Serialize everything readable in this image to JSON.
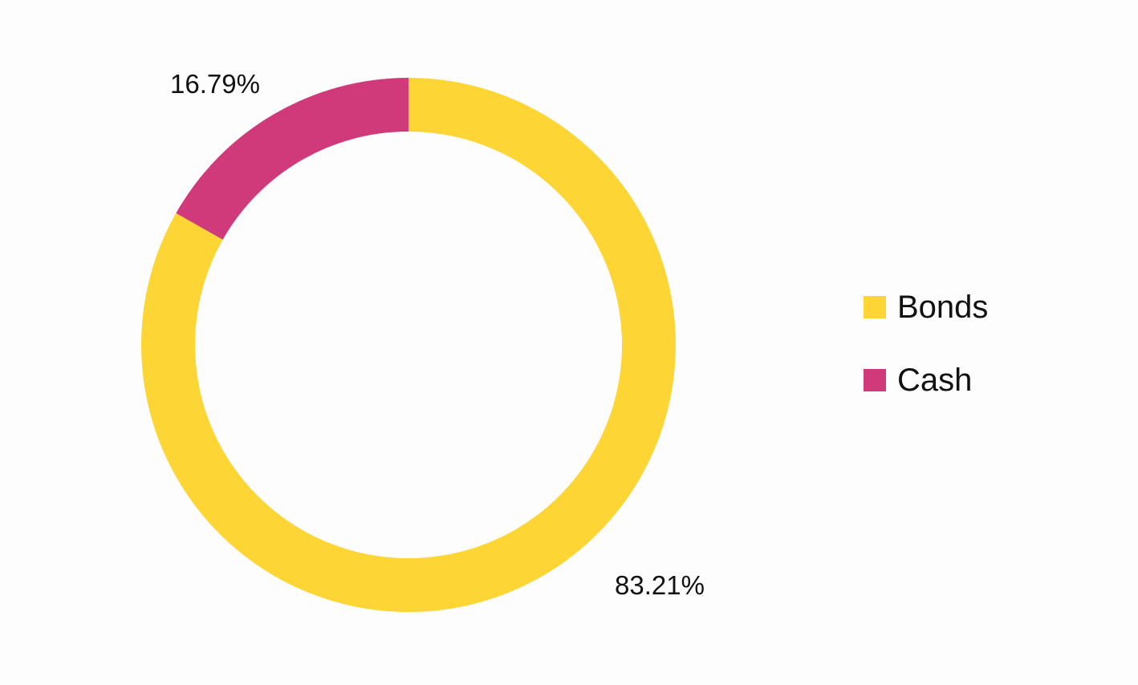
{
  "chart_data": {
    "type": "pie",
    "style": "donut",
    "series": [
      {
        "name": "Bonds",
        "value": 83.21,
        "label": "83.21%",
        "color": "#FDD535"
      },
      {
        "name": "Cash",
        "value": 16.79,
        "label": "16.79%",
        "color": "#D0397A"
      }
    ],
    "legend": {
      "placement": "right",
      "items": [
        {
          "label": "Bonds",
          "color": "#FDD535"
        },
        {
          "label": "Cash",
          "color": "#D0397A"
        }
      ]
    },
    "start_angle": "12 o'clock",
    "direction": "clockwise"
  }
}
